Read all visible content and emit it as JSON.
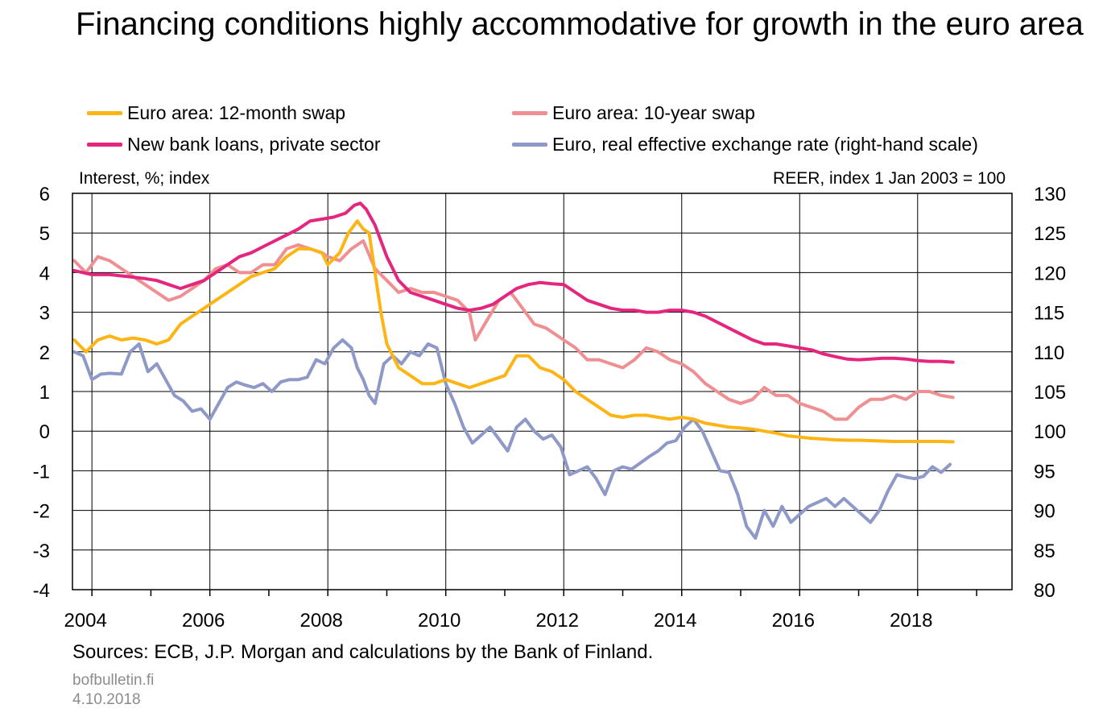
{
  "title": "Financing conditions highly accommodative for growth in the euro area",
  "footer": {
    "source": "Sources: ECB, J.P. Morgan and calculations by the Bank of Finland.",
    "site": "bofbulletin.fi",
    "date": "4.10.2018"
  },
  "chart_data": {
    "type": "line",
    "ylabel": "Interest, %; index",
    "y2label": "REER, index 1 Jan 2003 = 100",
    "xlim": [
      2003.67,
      2019.6
    ],
    "ylim": [
      -4,
      6
    ],
    "y2lim": [
      80,
      130
    ],
    "x_ticks": [
      2004,
      2006,
      2008,
      2010,
      2012,
      2014,
      2016,
      2018
    ],
    "y_ticks": [
      -4,
      -3,
      -2,
      -1,
      0,
      1,
      2,
      3,
      4,
      5,
      6
    ],
    "y2_ticks": [
      80,
      85,
      90,
      95,
      100,
      105,
      110,
      115,
      120,
      125,
      130
    ],
    "grid": true,
    "legend_position": "top",
    "series": [
      {
        "name": "Euro area: 12-month swap",
        "axis": "left",
        "color": "#FDB515",
        "x": [
          2003.7,
          2003.9,
          2004.1,
          2004.3,
          2004.5,
          2004.7,
          2004.9,
          2005.1,
          2005.3,
          2005.5,
          2005.7,
          2005.9,
          2006.1,
          2006.3,
          2006.5,
          2006.7,
          2006.9,
          2007.1,
          2007.3,
          2007.5,
          2007.7,
          2007.9,
          2008.0,
          2008.2,
          2008.35,
          2008.5,
          2008.6,
          2008.7,
          2008.8,
          2008.9,
          2009.0,
          2009.2,
          2009.4,
          2009.6,
          2009.8,
          2010.0,
          2010.2,
          2010.4,
          2010.6,
          2010.8,
          2011.0,
          2011.2,
          2011.4,
          2011.6,
          2011.8,
          2012.0,
          2012.2,
          2012.4,
          2012.6,
          2012.8,
          2013.0,
          2013.2,
          2013.4,
          2013.6,
          2013.8,
          2014.0,
          2014.2,
          2014.4,
          2014.6,
          2014.8,
          2015.0,
          2015.2,
          2015.4,
          2015.6,
          2015.8,
          2016.0,
          2016.2,
          2016.4,
          2016.6,
          2016.8,
          2017.0,
          2017.2,
          2017.4,
          2017.6,
          2017.8,
          2018.0,
          2018.2,
          2018.4,
          2018.6
        ],
        "y": [
          2.3,
          2.0,
          2.3,
          2.4,
          2.3,
          2.35,
          2.3,
          2.2,
          2.3,
          2.7,
          2.9,
          3.1,
          3.3,
          3.5,
          3.7,
          3.9,
          4.0,
          4.1,
          4.4,
          4.6,
          4.6,
          4.5,
          4.2,
          4.5,
          5.0,
          5.3,
          5.1,
          5.0,
          4.0,
          3.0,
          2.2,
          1.6,
          1.4,
          1.2,
          1.2,
          1.3,
          1.2,
          1.1,
          1.2,
          1.3,
          1.4,
          1.9,
          1.9,
          1.6,
          1.5,
          1.3,
          1.0,
          0.8,
          0.6,
          0.4,
          0.35,
          0.4,
          0.4,
          0.35,
          0.3,
          0.35,
          0.3,
          0.2,
          0.15,
          0.1,
          0.08,
          0.05,
          0.0,
          -0.05,
          -0.12,
          -0.15,
          -0.18,
          -0.2,
          -0.22,
          -0.23,
          -0.23,
          -0.24,
          -0.25,
          -0.26,
          -0.26,
          -0.26,
          -0.26,
          -0.26,
          -0.27
        ]
      },
      {
        "name": "Euro area: 10-year swap",
        "axis": "left",
        "color": "#EF8F92",
        "x": [
          2003.7,
          2003.9,
          2004.1,
          2004.3,
          2004.5,
          2004.7,
          2004.9,
          2005.1,
          2005.3,
          2005.5,
          2005.7,
          2005.9,
          2006.1,
          2006.3,
          2006.5,
          2006.7,
          2006.9,
          2007.1,
          2007.3,
          2007.5,
          2007.7,
          2007.9,
          2008.0,
          2008.2,
          2008.4,
          2008.6,
          2008.8,
          2009.0,
          2009.2,
          2009.4,
          2009.6,
          2009.8,
          2010.0,
          2010.2,
          2010.4,
          2010.5,
          2010.7,
          2010.9,
          2011.1,
          2011.3,
          2011.5,
          2011.7,
          2011.9,
          2012.0,
          2012.2,
          2012.4,
          2012.6,
          2012.8,
          2013.0,
          2013.2,
          2013.4,
          2013.6,
          2013.8,
          2014.0,
          2014.2,
          2014.4,
          2014.6,
          2014.8,
          2015.0,
          2015.2,
          2015.4,
          2015.6,
          2015.8,
          2016.0,
          2016.2,
          2016.4,
          2016.6,
          2016.8,
          2017.0,
          2017.2,
          2017.4,
          2017.6,
          2017.8,
          2018.0,
          2018.2,
          2018.4,
          2018.6
        ],
        "y": [
          4.3,
          4.0,
          4.4,
          4.3,
          4.1,
          3.9,
          3.7,
          3.5,
          3.3,
          3.4,
          3.6,
          3.8,
          4.1,
          4.2,
          4.0,
          4.0,
          4.2,
          4.2,
          4.6,
          4.7,
          4.6,
          4.5,
          4.4,
          4.3,
          4.6,
          4.8,
          4.1,
          3.8,
          3.5,
          3.6,
          3.5,
          3.5,
          3.4,
          3.3,
          3.0,
          2.3,
          2.8,
          3.3,
          3.5,
          3.1,
          2.7,
          2.6,
          2.4,
          2.3,
          2.1,
          1.8,
          1.8,
          1.7,
          1.6,
          1.8,
          2.1,
          2.0,
          1.8,
          1.7,
          1.5,
          1.2,
          1.0,
          0.8,
          0.7,
          0.8,
          1.1,
          0.9,
          0.9,
          0.7,
          0.6,
          0.5,
          0.3,
          0.3,
          0.6,
          0.8,
          0.8,
          0.9,
          0.8,
          1.0,
          1.0,
          0.9,
          0.85
        ]
      },
      {
        "name": "New bank loans, private sector",
        "axis": "left",
        "color": "#E5267E",
        "x": [
          2003.7,
          2004.0,
          2004.3,
          2004.6,
          2004.9,
          2005.1,
          2005.3,
          2005.5,
          2005.7,
          2005.9,
          2006.1,
          2006.3,
          2006.5,
          2006.7,
          2006.9,
          2007.1,
          2007.3,
          2007.5,
          2007.7,
          2007.9,
          2008.1,
          2008.3,
          2008.45,
          2008.55,
          2008.65,
          2008.8,
          2009.0,
          2009.2,
          2009.4,
          2009.6,
          2009.8,
          2010.0,
          2010.2,
          2010.4,
          2010.6,
          2010.8,
          2011.0,
          2011.2,
          2011.4,
          2011.6,
          2011.8,
          2012.0,
          2012.2,
          2012.4,
          2012.6,
          2012.8,
          2013.0,
          2013.2,
          2013.4,
          2013.6,
          2013.8,
          2014.0,
          2014.2,
          2014.4,
          2014.6,
          2014.8,
          2015.0,
          2015.2,
          2015.4,
          2015.6,
          2015.8,
          2016.0,
          2016.2,
          2016.4,
          2016.6,
          2016.8,
          2017.0,
          2017.2,
          2017.4,
          2017.6,
          2017.8,
          2018.0,
          2018.2,
          2018.4,
          2018.6
        ],
        "y": [
          4.05,
          3.95,
          3.95,
          3.9,
          3.85,
          3.8,
          3.7,
          3.6,
          3.7,
          3.8,
          4.0,
          4.2,
          4.4,
          4.5,
          4.65,
          4.8,
          4.95,
          5.1,
          5.3,
          5.35,
          5.4,
          5.5,
          5.7,
          5.75,
          5.6,
          5.2,
          4.4,
          3.8,
          3.5,
          3.4,
          3.3,
          3.2,
          3.1,
          3.05,
          3.1,
          3.2,
          3.4,
          3.6,
          3.7,
          3.75,
          3.72,
          3.7,
          3.5,
          3.3,
          3.2,
          3.1,
          3.05,
          3.05,
          3.0,
          3.0,
          3.05,
          3.05,
          3.0,
          2.9,
          2.75,
          2.6,
          2.45,
          2.3,
          2.2,
          2.2,
          2.15,
          2.1,
          2.05,
          1.95,
          1.88,
          1.82,
          1.8,
          1.82,
          1.84,
          1.84,
          1.82,
          1.78,
          1.76,
          1.76,
          1.74
        ]
      },
      {
        "name": "Euro, real effective exchange rate (right-hand scale)",
        "axis": "right",
        "color": "#8E99C8",
        "x": [
          2003.7,
          2003.85,
          2004.0,
          2004.15,
          2004.3,
          2004.5,
          2004.65,
          2004.8,
          2004.95,
          2005.1,
          2005.25,
          2005.4,
          2005.55,
          2005.7,
          2005.85,
          2006.0,
          2006.15,
          2006.3,
          2006.45,
          2006.6,
          2006.75,
          2006.9,
          2007.05,
          2007.2,
          2007.35,
          2007.5,
          2007.65,
          2007.8,
          2007.95,
          2008.1,
          2008.25,
          2008.4,
          2008.5,
          2008.6,
          2008.7,
          2008.8,
          2008.95,
          2009.1,
          2009.25,
          2009.4,
          2009.55,
          2009.7,
          2009.85,
          2010.0,
          2010.15,
          2010.3,
          2010.45,
          2010.6,
          2010.75,
          2010.9,
          2011.05,
          2011.2,
          2011.35,
          2011.5,
          2011.65,
          2011.8,
          2011.95,
          2012.1,
          2012.25,
          2012.4,
          2012.55,
          2012.7,
          2012.85,
          2013.0,
          2013.15,
          2013.3,
          2013.45,
          2013.6,
          2013.75,
          2013.9,
          2014.05,
          2014.2,
          2014.35,
          2014.5,
          2014.65,
          2014.8,
          2014.95,
          2015.1,
          2015.25,
          2015.4,
          2015.55,
          2015.7,
          2015.85,
          2016.0,
          2016.15,
          2016.3,
          2016.45,
          2016.6,
          2016.75,
          2016.9,
          2017.05,
          2017.2,
          2017.35,
          2017.5,
          2017.65,
          2017.8,
          2017.95,
          2018.1,
          2018.25,
          2018.4,
          2018.55
        ],
        "y": [
          110,
          109.5,
          106.5,
          107.2,
          107.3,
          107.2,
          110,
          111,
          107.5,
          108.5,
          106.5,
          104.5,
          103.8,
          102.5,
          102.8,
          101.5,
          103.5,
          105.5,
          106.2,
          105.8,
          105.5,
          106.0,
          105.0,
          106.2,
          106.5,
          106.5,
          106.8,
          109,
          108.5,
          110.5,
          111.5,
          110.5,
          108.0,
          106.5,
          104.5,
          103.5,
          108.5,
          109.5,
          108.5,
          110,
          109.5,
          111,
          110.5,
          106.0,
          103.5,
          100.5,
          98.5,
          99.5,
          100.5,
          99.0,
          97.5,
          100.5,
          101.5,
          100.0,
          99.0,
          99.5,
          98.0,
          94.5,
          95.0,
          95.5,
          94.0,
          92.0,
          95.0,
          95.5,
          95.2,
          96.0,
          96.8,
          97.5,
          98.5,
          98.8,
          100.5,
          101.5,
          100.0,
          97.5,
          95.0,
          94.8,
          92.0,
          88.0,
          86.5,
          90.0,
          88.0,
          90.5,
          88.5,
          89.5,
          90.5,
          91.0,
          91.5,
          90.5,
          91.5,
          90.5,
          89.5,
          88.5,
          90.0,
          92.5,
          94.5,
          94.2,
          94.0,
          94.3,
          95.5,
          94.8,
          95.8
        ]
      }
    ]
  }
}
